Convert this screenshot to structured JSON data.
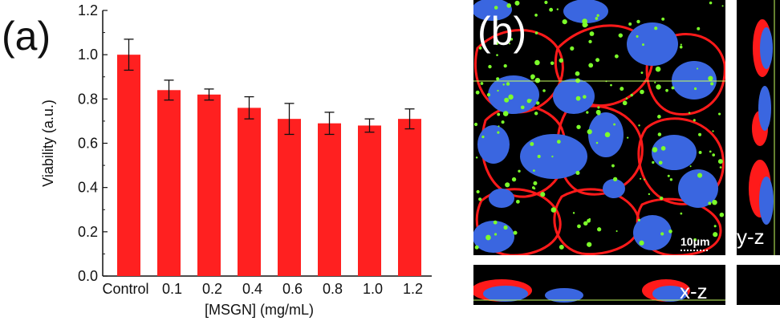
{
  "panel_a": {
    "label": "(a)",
    "chart_data": {
      "type": "bar",
      "categories": [
        "Control",
        "0.1",
        "0.2",
        "0.4",
        "0.6",
        "0.8",
        "1.0",
        "1.2"
      ],
      "values": [
        1.0,
        0.84,
        0.82,
        0.76,
        0.71,
        0.69,
        0.68,
        0.71
      ],
      "errors": [
        0.07,
        0.045,
        0.025,
        0.05,
        0.07,
        0.05,
        0.03,
        0.045
      ],
      "xlabel": "[MSGN] (mg/mL)",
      "ylabel": "Viability (a.u.)",
      "ylim": [
        0.0,
        1.2
      ],
      "yticks": [
        "0.0",
        "0.2",
        "0.4",
        "0.6",
        "0.8",
        "1.0",
        "1.2"
      ],
      "ytick_values": [
        0.0,
        0.2,
        0.4,
        0.6,
        0.8,
        1.0,
        1.2
      ],
      "bar_color": "#ff2020",
      "grid": false
    }
  },
  "panel_b": {
    "label": "(b)",
    "scale_bar": "10μm",
    "yz_label": "y-z",
    "xz_label": "x-z",
    "colors": {
      "background": "#000000",
      "nuclei": "#3a66e0",
      "membrane": "#ff1a1a",
      "particles": "#7cff2a",
      "crosshair": "#c8ff60"
    }
  }
}
